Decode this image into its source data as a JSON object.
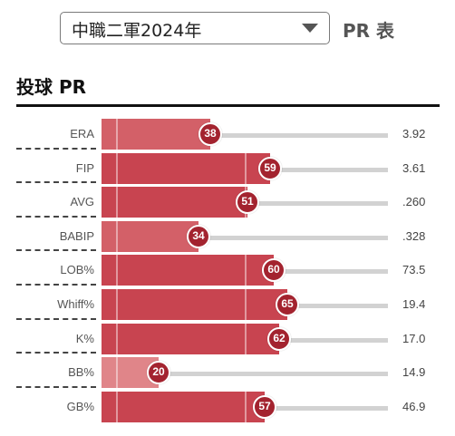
{
  "header": {
    "season_select": {
      "value": "中職二軍2024年",
      "options": [
        "中職二軍2024年"
      ]
    },
    "table_label": "PR 表"
  },
  "section": {
    "title": "投球 PR"
  },
  "colors": {
    "high": "#c84450",
    "mid": "#d36068",
    "low": "#e08589",
    "badge": "#a3232f",
    "track": "#d2d2d2"
  },
  "chart_data": {
    "type": "bar",
    "categories": [
      "ERA",
      "FIP",
      "AVG",
      "BABIP",
      "LOB%",
      "Whiff%",
      "K%",
      "BB%",
      "GB%"
    ],
    "values": [
      38,
      59,
      51,
      34,
      60,
      65,
      62,
      20,
      57
    ],
    "stat_values": [
      "3.92",
      "3.61",
      ".260",
      ".328",
      "73.5",
      "19.4",
      "17.0",
      "14.9",
      "46.9"
    ],
    "ylim": [
      0,
      100
    ]
  }
}
